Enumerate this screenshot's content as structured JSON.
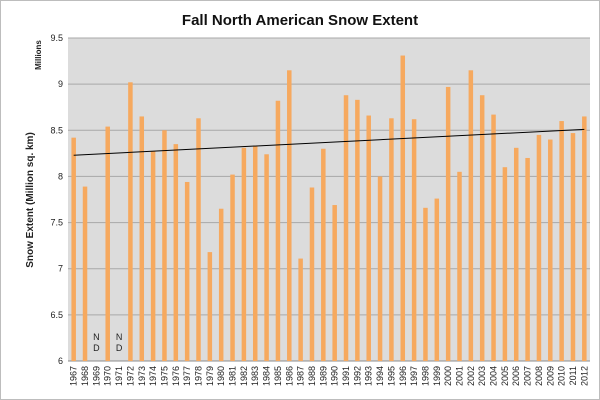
{
  "chart_data": {
    "type": "bar",
    "title": "Fall North American Snow Extent",
    "ylabel": "Snow Extent (Million sq. km)",
    "units_label": "Millions",
    "ylim": [
      6,
      9.5
    ],
    "yticks": [
      "6",
      "6.5",
      "7",
      "7.5",
      "8",
      "8.5",
      "9",
      "9.5"
    ],
    "grid": true,
    "legend": "none",
    "colors": {
      "bar": "#f6a95f",
      "plot_bg": "#dcdcdc",
      "trend": "#000000"
    },
    "categories": [
      "1967",
      "1968",
      "1969",
      "1970",
      "1971",
      "1972",
      "1973",
      "1974",
      "1975",
      "1976",
      "1977",
      "1978",
      "1979",
      "1980",
      "1981",
      "1982",
      "1983",
      "1984",
      "1985",
      "1986",
      "1987",
      "1988",
      "1989",
      "1990",
      "1991",
      "1992",
      "1993",
      "1994",
      "1995",
      "1996",
      "1997",
      "1998",
      "1999",
      "2000",
      "2001",
      "2002",
      "2003",
      "2004",
      "2005",
      "2006",
      "2007",
      "2008",
      "2009",
      "2010",
      "2011",
      "2012"
    ],
    "values": [
      8.42,
      7.89,
      null,
      8.54,
      null,
      9.02,
      8.65,
      8.27,
      8.5,
      8.35,
      7.94,
      8.63,
      7.18,
      7.65,
      8.02,
      8.31,
      8.33,
      8.24,
      8.82,
      9.15,
      7.11,
      7.88,
      8.3,
      7.69,
      8.88,
      8.83,
      8.66,
      8.0,
      8.63,
      9.31,
      8.62,
      7.66,
      7.76,
      8.97,
      8.05,
      9.15,
      8.88,
      8.67,
      8.1,
      8.31,
      8.2,
      8.45,
      8.4,
      8.6,
      8.47,
      8.65
    ],
    "nd_label": "N\nD",
    "trendline": {
      "start": 8.23,
      "end": 8.51
    }
  }
}
